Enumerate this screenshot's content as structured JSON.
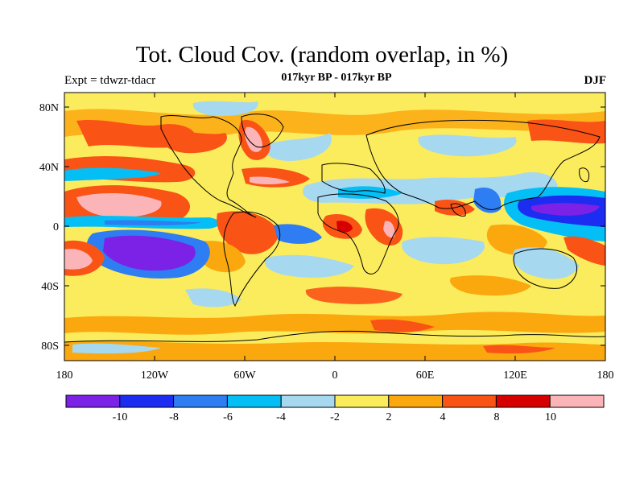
{
  "title": "Tot. Cloud Cov. (random overlap, in %)",
  "subtitle": "017kyr BP - 017kyr BP",
  "experiment_label": "Expt = tdwzr-tdacr",
  "season_label": "DJF",
  "map": {
    "projection": "cylindrical equidistant",
    "lat_ticks": [
      "80N",
      "40N",
      "0",
      "40S",
      "80S"
    ],
    "lon_ticks": [
      "180",
      "120W",
      "60W",
      "0",
      "60E",
      "120E",
      "180"
    ]
  },
  "colorbar": {
    "colors": [
      "#7b22e6",
      "#1c2cf0",
      "#2e7df2",
      "#03bff5",
      "#a6d8f0",
      "#fbec5d",
      "#fba80f",
      "#fa5316",
      "#d60000",
      "#fbb4b8"
    ],
    "labels": [
      "-10",
      "-8",
      "-6",
      "-4",
      "-2",
      "2",
      "4",
      "8",
      "10"
    ]
  }
}
